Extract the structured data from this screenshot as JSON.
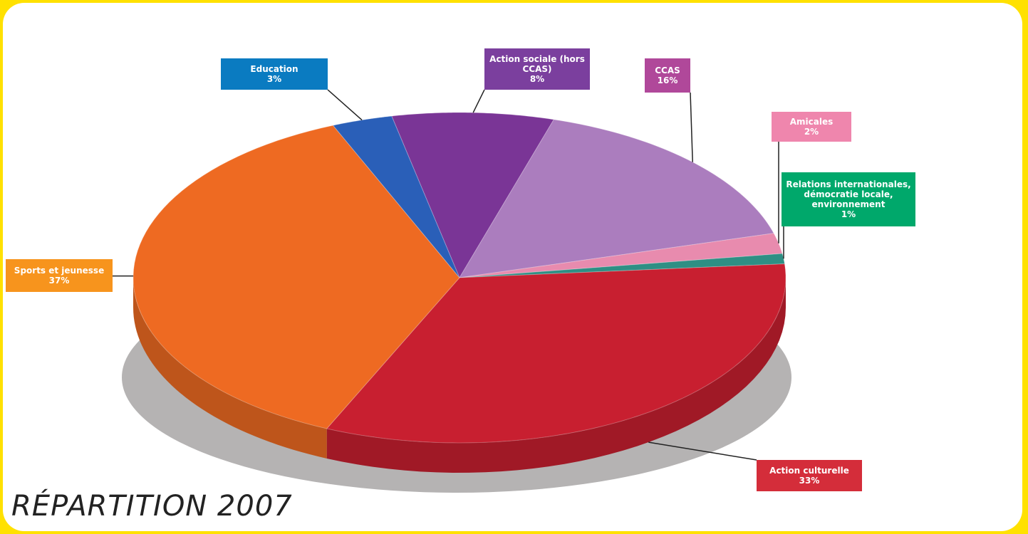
{
  "chart_data": {
    "type": "pie",
    "title": "RÉPARTITION 2007",
    "categories": [
      "Action sociale (hors CCAS)",
      "CCAS",
      "Amicales",
      "Relations internationales, démocratie locale, environnement",
      "Action culturelle",
      "Sports et jeunesse",
      "Education"
    ],
    "values": [
      8,
      16,
      2,
      1,
      33,
      37,
      3
    ],
    "value_labels": [
      "8%",
      "16%",
      "2%",
      "1%",
      "33%",
      "37%",
      "3%"
    ],
    "colors": [
      "#7a3596",
      "#ab7dbe",
      "#e88bae",
      "#2e8f84",
      "#c81f30",
      "#ee6a22",
      "#2a5fb8"
    ],
    "label_colors": [
      "#7b3f9e",
      "#b0489a",
      "#ef86ad",
      "#00a86b",
      "#d42d3a",
      "#f7941d",
      "#0a7bc1"
    ]
  }
}
